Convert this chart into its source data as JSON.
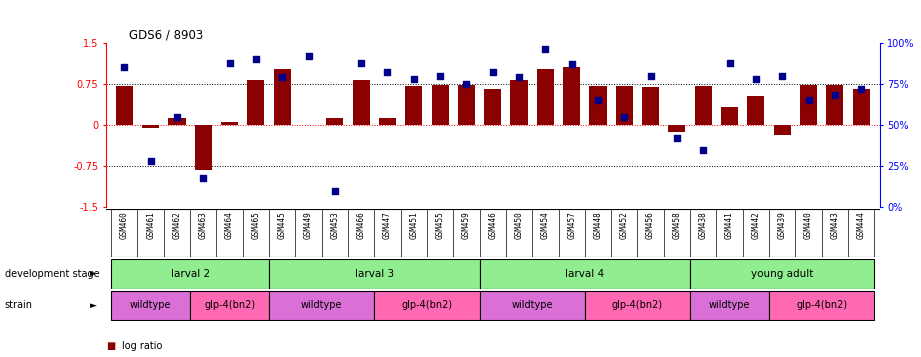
{
  "title": "GDS6 / 8903",
  "samples": [
    "GSM460",
    "GSM461",
    "GSM462",
    "GSM463",
    "GSM464",
    "GSM465",
    "GSM445",
    "GSM449",
    "GSM453",
    "GSM466",
    "GSM447",
    "GSM451",
    "GSM455",
    "GSM459",
    "GSM446",
    "GSM450",
    "GSM454",
    "GSM457",
    "GSM448",
    "GSM452",
    "GSM456",
    "GSM458",
    "GSM438",
    "GSM441",
    "GSM442",
    "GSM439",
    "GSM440",
    "GSM443",
    "GSM444"
  ],
  "log_ratio": [
    0.72,
    -0.05,
    0.13,
    -0.82,
    0.05,
    0.82,
    1.02,
    0.0,
    0.12,
    0.83,
    0.13,
    0.72,
    0.73,
    0.73,
    0.65,
    0.83,
    1.02,
    1.05,
    0.72,
    0.72,
    0.7,
    -0.12,
    0.72,
    0.32,
    0.52,
    -0.18,
    0.73,
    0.73,
    0.65
  ],
  "percentile": [
    85,
    28,
    55,
    18,
    88,
    90,
    79,
    92,
    10,
    88,
    82,
    78,
    80,
    75,
    82,
    79,
    96,
    87,
    65,
    55,
    80,
    42,
    35,
    88,
    78,
    80,
    65,
    68,
    72
  ],
  "dev_stage_groups": [
    {
      "label": "larval 2",
      "start": 0,
      "end": 5,
      "color": "#90EE90"
    },
    {
      "label": "larval 3",
      "start": 6,
      "end": 13,
      "color": "#90EE90"
    },
    {
      "label": "larval 4",
      "start": 14,
      "end": 21,
      "color": "#90EE90"
    },
    {
      "label": "young adult",
      "start": 22,
      "end": 28,
      "color": "#90EE90"
    }
  ],
  "strain_groups": [
    {
      "label": "wildtype",
      "start": 0,
      "end": 2,
      "color": "#DA70D6"
    },
    {
      "label": "glp-4(bn2)",
      "start": 3,
      "end": 5,
      "color": "#FF69B4"
    },
    {
      "label": "wildtype",
      "start": 6,
      "end": 9,
      "color": "#DA70D6"
    },
    {
      "label": "glp-4(bn2)",
      "start": 10,
      "end": 13,
      "color": "#FF69B4"
    },
    {
      "label": "wildtype",
      "start": 14,
      "end": 17,
      "color": "#DA70D6"
    },
    {
      "label": "glp-4(bn2)",
      "start": 18,
      "end": 21,
      "color": "#FF69B4"
    },
    {
      "label": "wildtype",
      "start": 22,
      "end": 24,
      "color": "#DA70D6"
    },
    {
      "label": "glp-4(bn2)",
      "start": 25,
      "end": 28,
      "color": "#FF69B4"
    }
  ],
  "ylim_left": [
    -1.5,
    1.5
  ],
  "ylim_right": [
    0,
    100
  ],
  "yticks_left": [
    -1.5,
    -0.75,
    0,
    0.75,
    1.5
  ],
  "yticks_right": [
    0,
    25,
    50,
    75,
    100
  ],
  "bar_color": "#8B0000",
  "dot_color": "#00008B",
  "background_color": "#ffffff",
  "label_bg_color": "#c8c8c8"
}
